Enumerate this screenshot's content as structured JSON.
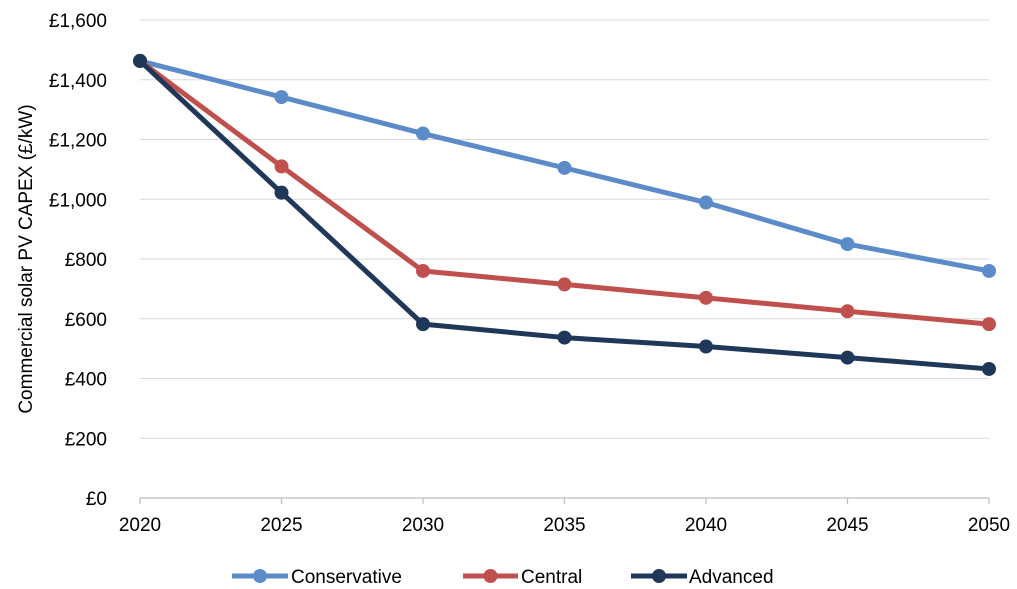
{
  "chart_data": {
    "type": "line",
    "title": "",
    "xlabel": "",
    "ylabel": "Commercial solar PV CAPEX (£/kW)",
    "x": [
      "2020",
      "2025",
      "2030",
      "2035",
      "2040",
      "2045",
      "2050"
    ],
    "ylim": [
      0,
      1600
    ],
    "yticks": [
      {
        "value": 0,
        "label": "£0"
      },
      {
        "value": 200,
        "label": "£200"
      },
      {
        "value": 400,
        "label": "£400"
      },
      {
        "value": 600,
        "label": "£600"
      },
      {
        "value": 800,
        "label": "£800"
      },
      {
        "value": 1000,
        "label": "£1,000"
      },
      {
        "value": 1200,
        "label": "£1,200"
      },
      {
        "value": 1400,
        "label": "£1,400"
      },
      {
        "value": 1600,
        "label": "£1,600"
      }
    ],
    "grid": "horizontal",
    "legend_position": "bottom",
    "series": [
      {
        "name": "Conservative",
        "color": "#5b8bc9",
        "values": [
          1463,
          1342,
          1220,
          1105,
          989,
          850,
          760
        ]
      },
      {
        "name": "Central",
        "color": "#c0504d",
        "values": [
          1463,
          1110,
          760,
          715,
          670,
          625,
          582
        ]
      },
      {
        "name": "Advanced",
        "color": "#1f3759",
        "values": [
          1463,
          1022,
          582,
          537,
          507,
          470,
          432
        ]
      }
    ]
  }
}
